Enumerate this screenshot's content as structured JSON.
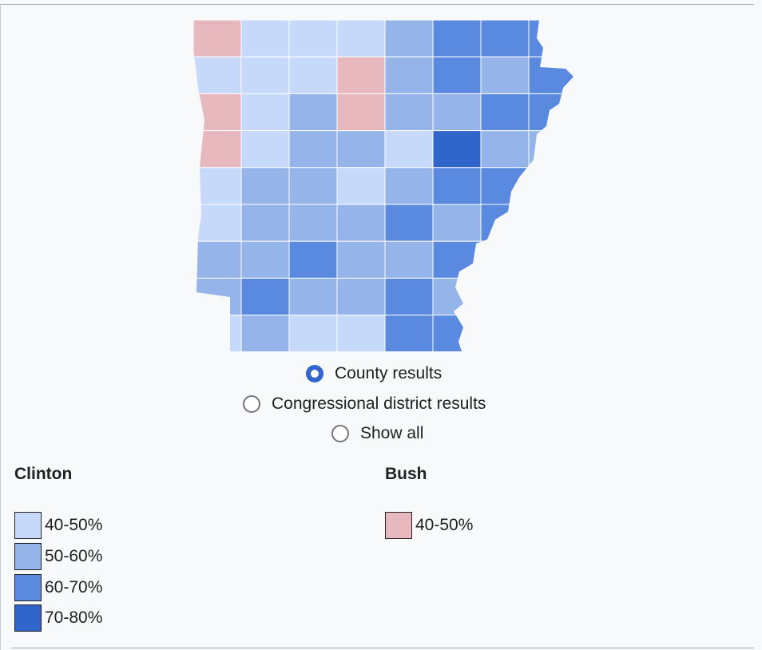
{
  "map_options": [
    "County results",
    "Congressional district results",
    "Show all"
  ],
  "legend": {
    "clinton": {
      "title": "Clinton",
      "items": [
        "40-50%",
        "50-60%",
        "60-70%",
        "70-80%"
      ]
    },
    "bush": {
      "title": "Bush",
      "items": [
        "40-50%"
      ]
    }
  }
}
